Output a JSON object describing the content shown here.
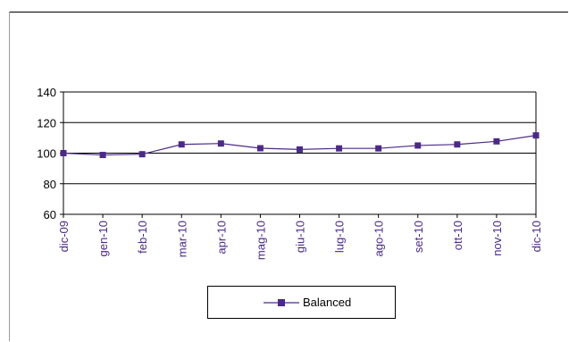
{
  "chart_data": {
    "type": "line",
    "title": "",
    "xlabel": "",
    "ylabel": "",
    "categories": [
      "dic-09",
      "gen-10",
      "feb-10",
      "mar-10",
      "apr-10",
      "mag-10",
      "giu-10",
      "lug-10",
      "ago-10",
      "set-10",
      "ott-10",
      "nov-10",
      "dic-10"
    ],
    "series": [
      {
        "name": "Balanced",
        "values": [
          100,
          98.8,
          99.3,
          105.7,
          106.3,
          103.2,
          102.4,
          103.1,
          103.1,
          105.0,
          105.7,
          107.7,
          111.6
        ],
        "color": "#4b2a87"
      }
    ],
    "ylim": [
      60,
      140
    ],
    "yticks": [
      60,
      80,
      100,
      120,
      140
    ],
    "grid": "horizontal",
    "legend_position": "bottom"
  }
}
